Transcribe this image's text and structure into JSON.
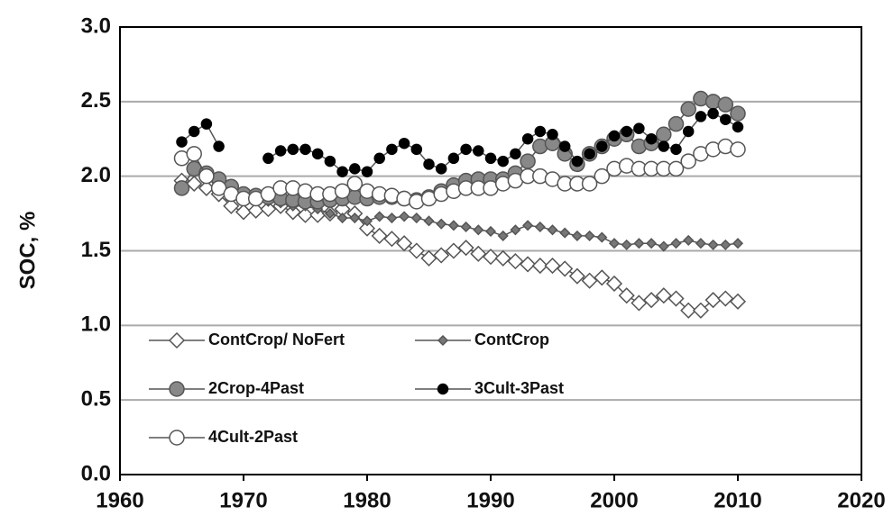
{
  "chart_data": {
    "type": "line",
    "ylabel": "SOC, %",
    "x": [
      1965,
      1966,
      1967,
      1968,
      1969,
      1970,
      1971,
      1972,
      1973,
      1974,
      1975,
      1976,
      1977,
      1978,
      1979,
      1980,
      1981,
      1982,
      1983,
      1984,
      1985,
      1986,
      1987,
      1988,
      1989,
      1990,
      1991,
      1992,
      1993,
      1994,
      1995,
      1996,
      1997,
      1998,
      1999,
      2000,
      2001,
      2002,
      2003,
      2004,
      2005,
      2006,
      2007,
      2008,
      2009,
      2010
    ],
    "series": [
      {
        "name": "ContCrop/ NoFert",
        "color": "#ffffff",
        "marker": "diamond",
        "values": [
          1.97,
          1.95,
          1.92,
          1.88,
          1.8,
          1.76,
          1.77,
          1.78,
          1.8,
          1.76,
          1.74,
          1.74,
          1.75,
          1.78,
          1.75,
          1.65,
          1.6,
          1.58,
          1.55,
          1.5,
          1.45,
          1.47,
          1.5,
          1.52,
          1.48,
          1.46,
          1.45,
          1.43,
          1.41,
          1.4,
          1.4,
          1.38,
          1.33,
          1.3,
          1.32,
          1.28,
          1.2,
          1.15,
          1.17,
          1.2,
          1.18,
          1.1,
          1.1,
          1.17,
          1.18,
          1.16
        ]
      },
      {
        "name": "ContCrop",
        "color": "#777777",
        "marker": "small-diamond",
        "values": [
          1.92,
          2.05,
          2.0,
          1.95,
          1.9,
          1.85,
          1.85,
          1.83,
          1.82,
          1.8,
          1.8,
          1.78,
          1.75,
          1.72,
          1.72,
          1.7,
          1.73,
          1.72,
          1.73,
          1.72,
          1.7,
          1.68,
          1.67,
          1.66,
          1.64,
          1.63,
          1.6,
          1.64,
          1.67,
          1.66,
          1.64,
          1.62,
          1.6,
          1.6,
          1.59,
          1.55,
          1.54,
          1.55,
          1.55,
          1.53,
          1.55,
          1.57,
          1.55,
          1.54,
          1.54,
          1.55
        ]
      },
      {
        "name": "2Crop-4Past",
        "color": "#888888",
        "marker": "circle",
        "values": [
          1.92,
          2.05,
          2.02,
          1.98,
          1.93,
          1.88,
          1.87,
          1.86,
          1.85,
          1.84,
          1.83,
          1.83,
          1.84,
          1.85,
          1.86,
          1.85,
          1.86,
          1.86,
          1.85,
          1.84,
          1.86,
          1.9,
          1.94,
          1.97,
          1.98,
          1.98,
          1.98,
          2.02,
          2.1,
          2.2,
          2.22,
          2.15,
          2.08,
          2.15,
          2.2,
          2.25,
          2.28,
          2.2,
          2.22,
          2.28,
          2.35,
          2.45,
          2.52,
          2.5,
          2.48,
          2.42
        ]
      },
      {
        "name": "3Cult-3Past",
        "color": "#000000",
        "marker": "small-circle",
        "values": [
          2.23,
          2.3,
          2.35,
          2.2,
          null,
          null,
          null,
          2.12,
          2.17,
          2.18,
          2.18,
          2.15,
          2.1,
          2.03,
          2.05,
          2.03,
          2.12,
          2.18,
          2.22,
          2.18,
          2.08,
          2.05,
          2.12,
          2.18,
          2.17,
          2.12,
          2.1,
          2.15,
          2.25,
          2.3,
          2.28,
          2.2,
          2.1,
          2.15,
          2.2,
          2.27,
          2.3,
          2.32,
          2.25,
          2.2,
          2.18,
          2.3,
          2.4,
          2.42,
          2.38,
          2.33
        ]
      },
      {
        "name": "4Cult-2Past",
        "color": "#ffffff",
        "marker": "circle",
        "values": [
          2.12,
          2.15,
          2.0,
          1.92,
          1.88,
          1.85,
          1.85,
          1.88,
          1.92,
          1.92,
          1.9,
          1.88,
          1.88,
          1.9,
          1.95,
          1.9,
          1.88,
          1.87,
          1.85,
          1.83,
          1.85,
          1.88,
          1.9,
          1.92,
          1.92,
          1.92,
          1.95,
          1.97,
          2.0,
          2.0,
          1.98,
          1.95,
          1.95,
          1.95,
          2.0,
          2.05,
          2.07,
          2.05,
          2.05,
          2.05,
          2.05,
          2.1,
          2.15,
          2.18,
          2.2,
          2.18
        ]
      }
    ],
    "xlim": [
      1960,
      2020
    ],
    "xticks": [
      1960,
      1970,
      1980,
      1990,
      2000,
      2010,
      2020
    ],
    "ylim": [
      0,
      3
    ],
    "yticks": [
      {
        "value": 0,
        "label": "0.0"
      },
      {
        "value": 0.5,
        "label": "0.5"
      },
      {
        "value": 1,
        "label": "1.0"
      },
      {
        "value": 1.5,
        "label": "1.5"
      },
      {
        "value": 2,
        "label": "2.0"
      },
      {
        "value": 2.5,
        "label": "2.5"
      },
      {
        "value": 3,
        "label": "3.0"
      }
    ],
    "grid": true,
    "legend": "lower left"
  }
}
